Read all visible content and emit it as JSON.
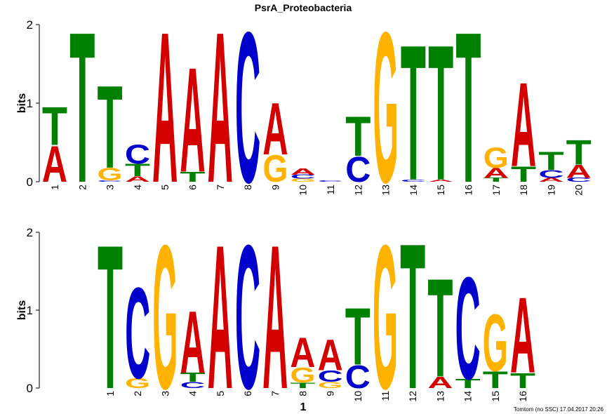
{
  "chart_data": [
    {
      "type": "logo",
      "title": "PsrA_Proteobacteria",
      "y_label": "bits",
      "categories": [
        "1",
        "2",
        "3",
        "4",
        "5",
        "6",
        "7",
        "8",
        "9",
        "10",
        "11",
        "12",
        "13",
        "14",
        "15",
        "16",
        "17",
        "18",
        "19",
        "20"
      ],
      "series": [
        {
          "name": "A",
          "color": "#d40000",
          "values": [
            0.47,
            0,
            0,
            0.07,
            1.97,
            1.37,
            1.97,
            0,
            0.68,
            0.08,
            0,
            0,
            0,
            0,
            0.03,
            0,
            0.13,
            1.1,
            0.05,
            0.17
          ]
        },
        {
          "name": "C",
          "color": "#0000cc",
          "values": [
            0,
            0,
            0.02,
            0.25,
            0,
            0,
            0,
            1.97,
            0,
            0.05,
            0.02,
            0.33,
            0,
            0.03,
            0,
            0,
            0,
            0,
            0.1,
            0.05
          ]
        },
        {
          "name": "G",
          "color": "#ffb300",
          "values": [
            0,
            0,
            0.16,
            0,
            0,
            0,
            0,
            0,
            0.35,
            0.04,
            0,
            0,
            1.97,
            0,
            0,
            0,
            0.27,
            0,
            0,
            0
          ]
        },
        {
          "name": "T",
          "color": "#008000",
          "values": [
            0.5,
            1.97,
            1.08,
            0.16,
            0,
            0.13,
            0,
            0,
            0,
            0,
            0,
            0.52,
            0,
            1.77,
            1.77,
            1.97,
            0.05,
            0.2,
            0.24,
            0.32
          ]
        }
      ],
      "ylim": [
        0,
        2
      ],
      "yticks": [
        0,
        1,
        2
      ]
    },
    {
      "type": "logo",
      "y_label": "bits",
      "x_label": "1",
      "categories": [
        "1",
        "2",
        "3",
        "4",
        "5",
        "6",
        "7",
        "8",
        "9",
        "10",
        "11",
        "12",
        "13",
        "14",
        "15",
        "16"
      ],
      "series": [
        {
          "name": "A",
          "color": "#d40000",
          "values": [
            0,
            0,
            0,
            0.82,
            1.9,
            0,
            1.9,
            0.39,
            0.41,
            0,
            0,
            0,
            0.15,
            0,
            0,
            1.0
          ]
        },
        {
          "name": "C",
          "color": "#0000cc",
          "values": [
            0,
            1.2,
            0,
            0.08,
            0,
            1.9,
            0,
            0,
            0.15,
            0.3,
            0,
            0,
            0,
            1.35,
            0,
            0
          ]
        },
        {
          "name": "G",
          "color": "#ffb300",
          "values": [
            0,
            0.13,
            1.9,
            0,
            0,
            0,
            0,
            0.2,
            0.08,
            0,
            1.9,
            0,
            0,
            0,
            0.75,
            0
          ]
        },
        {
          "name": "T",
          "color": "#008000",
          "values": [
            1.9,
            0,
            0,
            0.12,
            0,
            0,
            0,
            0.07,
            0,
            0.75,
            0,
            1.92,
            1.3,
            0.12,
            0.22,
            0.2
          ]
        }
      ],
      "ylim": [
        0,
        2
      ],
      "yticks": [
        0,
        1,
        2
      ]
    }
  ],
  "footer": "Tomtom (no SSC) 17.04.2017 20:26"
}
